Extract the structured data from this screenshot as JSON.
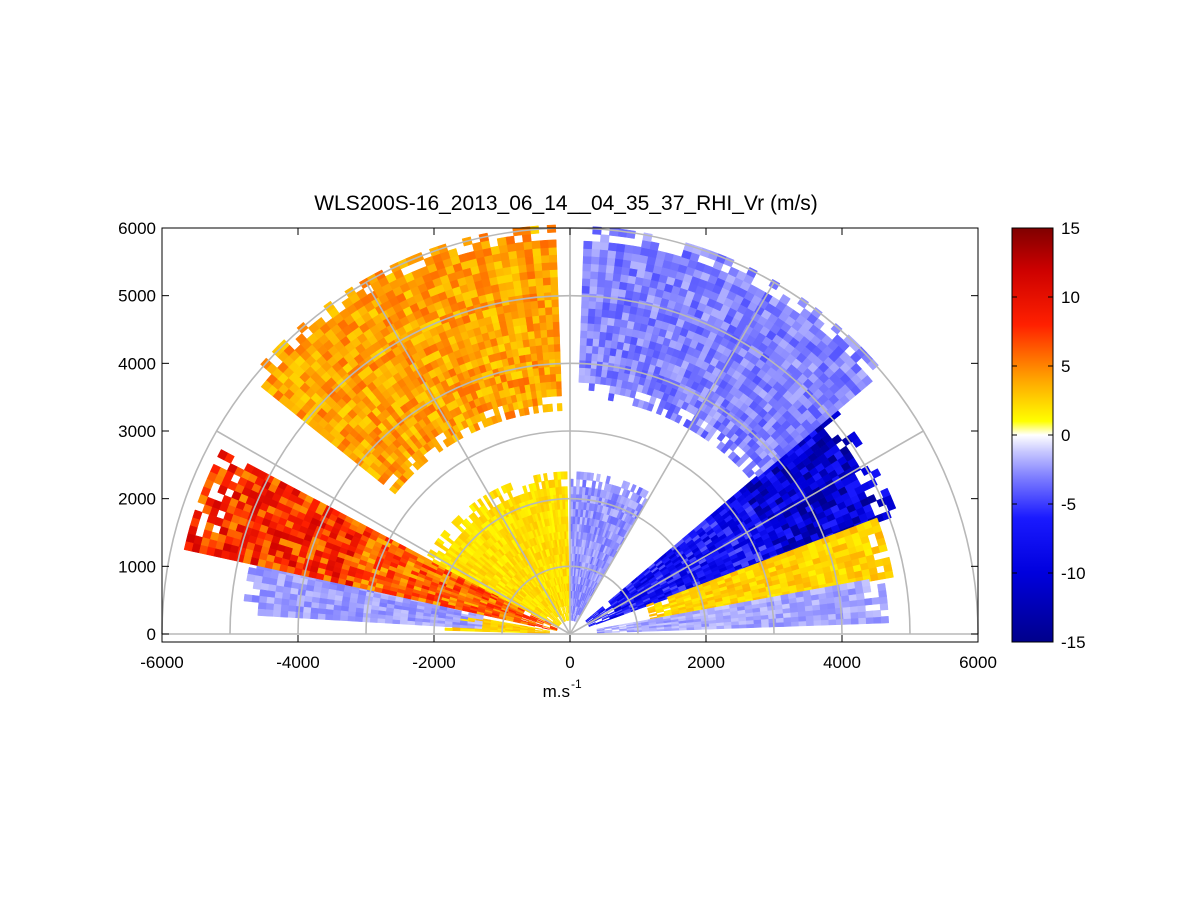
{
  "chart_data": {
    "type": "heatmap",
    "subtype": "polar RHI (range-height indicator) scan",
    "title": "WLS200S-16_2013_06_14__04_35_37_RHI_Vr (m/s)",
    "xlabel_base": "m.s",
    "xlabel_exponent": "-1",
    "ylabel": "",
    "xlim": [
      -6000,
      6000
    ],
    "ylim": [
      -100,
      6000
    ],
    "xticks": [
      -6000,
      -4000,
      -2000,
      0,
      2000,
      4000,
      6000
    ],
    "yticks": [
      0,
      1000,
      2000,
      3000,
      4000,
      5000,
      6000
    ],
    "polar_grid": {
      "range_rings": [
        1000,
        2000,
        3000,
        4000,
        5000,
        6000
      ],
      "spokes_deg": [
        0,
        30,
        60,
        90,
        120,
        150,
        180
      ]
    },
    "grid": true,
    "colorbar": {
      "placement": "right",
      "limits": [
        -15,
        15
      ],
      "ticks": [
        15,
        10,
        5,
        0,
        -5,
        -10,
        -15
      ],
      "colormap": [
        [
          -15,
          "#00008b"
        ],
        [
          -10,
          "#0000dd"
        ],
        [
          -6,
          "#1a1aff"
        ],
        [
          -3,
          "#8080ff"
        ],
        [
          -1.2,
          "#c8c8ff"
        ],
        [
          0,
          "#ffffff"
        ],
        [
          1,
          "#ffff00"
        ],
        [
          4,
          "#ffa500"
        ],
        [
          8,
          "#ff2000"
        ],
        [
          12,
          "#cc0000"
        ],
        [
          15,
          "#800000"
        ]
      ]
    },
    "velocity_regions": [
      {
        "description": "lower-left near-surface band",
        "r": [
          300,
          1800
        ],
        "theta_deg": [
          170,
          178
        ],
        "vr": 2.5
      },
      {
        "description": "lower-left low layer",
        "r": [
          1300,
          4800
        ],
        "theta_deg": [
          167,
          176
        ],
        "vr": -2.2
      },
      {
        "description": "left mid layer",
        "r": [
          200,
          5800
        ],
        "theta_deg": [
          152,
          167
        ],
        "vr": 6.0
      },
      {
        "description": "near-vertical left",
        "r": [
          200,
          2300
        ],
        "theta_deg": [
          91,
          152
        ],
        "vr": 2.0
      },
      {
        "description": "near-vertical right",
        "r": [
          200,
          2300
        ],
        "theta_deg": [
          60,
          89
        ],
        "vr": -2.5
      },
      {
        "description": "right mid layer",
        "r": [
          300,
          5100
        ],
        "theta_deg": [
          20,
          40
        ],
        "vr": -7.5
      },
      {
        "description": "right low layer",
        "r": [
          1200,
          4800
        ],
        "theta_deg": [
          10,
          20
        ],
        "vr": 2.5
      },
      {
        "description": "right near-surface",
        "r": [
          400,
          4600
        ],
        "theta_deg": [
          2,
          10
        ],
        "vr": -2.0
      },
      {
        "description": "upper-left arc",
        "r": [
          3300,
          6000
        ],
        "theta_deg": [
          92,
          140
        ],
        "vr": 4.0
      },
      {
        "description": "upper-right arc",
        "r": [
          3500,
          6000
        ],
        "theta_deg": [
          40,
          88
        ],
        "vr": -3.0
      }
    ]
  }
}
